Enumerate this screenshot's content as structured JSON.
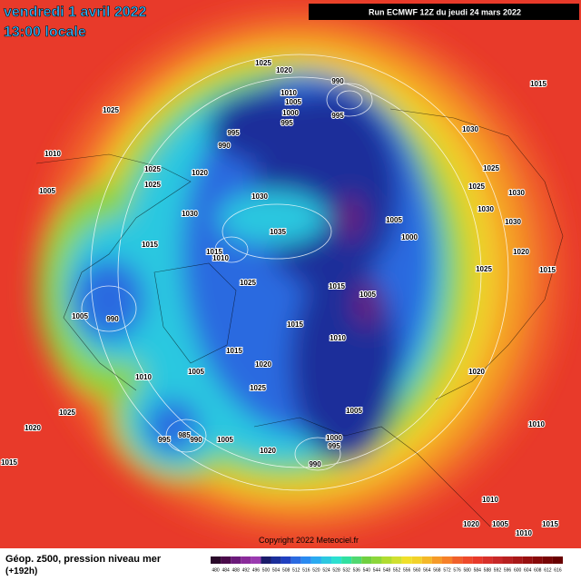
{
  "header": {
    "title": "vendredi 1 avril 2022",
    "subtitle": "13:00 locale",
    "run": "Run ECMWF 12Z du jeudi 24 mars 2022"
  },
  "map": {
    "pressure_labels": [
      "1025",
      "1020",
      "990",
      "1010",
      "1005",
      "995",
      "1000",
      "995",
      "995",
      "990",
      "1025",
      "1015",
      "1030",
      "1010",
      "1025",
      "1020",
      "1025",
      "1025",
      "1005",
      "1025",
      "1030",
      "1030",
      "1030",
      "1005",
      "1000",
      "1035",
      "1015",
      "1015",
      "1010",
      "1030",
      "1030",
      "1020",
      "1025",
      "1015",
      "1025",
      "1015",
      "1005",
      "1005",
      "990",
      "1015",
      "1010",
      "1015",
      "1020",
      "1010",
      "1005",
      "1025",
      "1020",
      "1025",
      "1005",
      "995",
      "985",
      "990",
      "1005",
      "1020",
      "1000",
      "995",
      "1010",
      "1015",
      "1020",
      "990",
      "1010",
      "1020",
      "1005",
      "1010",
      "1015"
    ]
  },
  "footer": {
    "title": "Géop. z500, pression niveau mer",
    "lead": "(+192h)",
    "copyright": "Copyright 2022 Meteociel.fr",
    "colorbar": [
      "480",
      "484",
      "488",
      "492",
      "496",
      "500",
      "504",
      "508",
      "512",
      "516",
      "520",
      "524",
      "528",
      "532",
      "536",
      "540",
      "544",
      "548",
      "552",
      "556",
      "560",
      "564",
      "568",
      "572",
      "576",
      "580",
      "584",
      "588",
      "592",
      "596",
      "600",
      "604",
      "608",
      "612",
      "616"
    ]
  }
}
